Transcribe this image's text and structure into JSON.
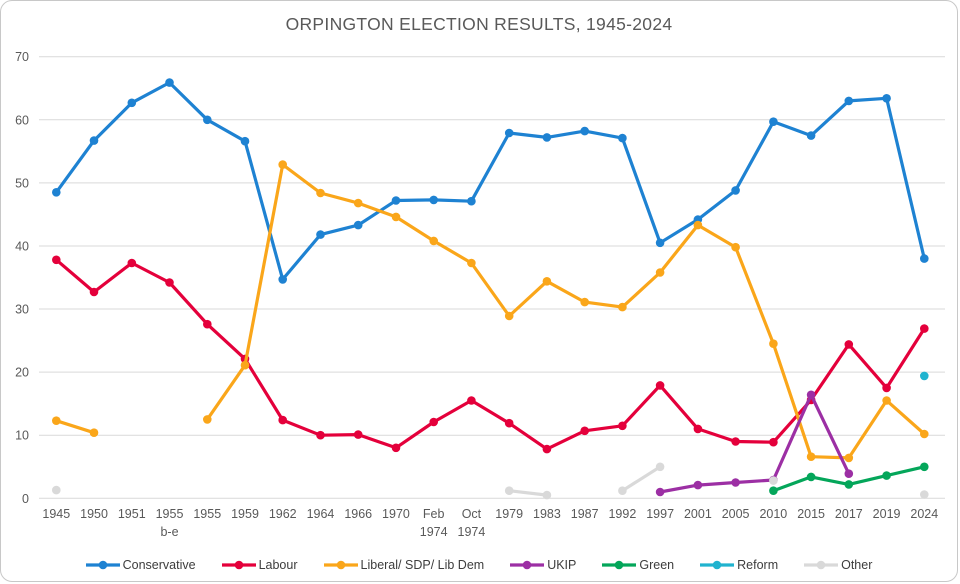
{
  "chart_data": {
    "type": "line",
    "title": "ORPINGTON ELECTION RESULTS, 1945-2024",
    "xlabel": "",
    "ylabel": "",
    "ylim": [
      0,
      70
    ],
    "yticks": [
      0,
      10,
      20,
      30,
      40,
      50,
      60,
      70
    ],
    "grid": true,
    "legend_position": "bottom",
    "marker": "circle",
    "categories": [
      "1945",
      "1950",
      "1951",
      "1955\nb-e",
      "1955",
      "1959",
      "1962",
      "1964",
      "1966",
      "1970",
      "Feb\n1974",
      "Oct\n1974",
      "1979",
      "1983",
      "1987",
      "1992",
      "1997",
      "2001",
      "2005",
      "2010",
      "2015",
      "2017",
      "2019",
      "2024"
    ],
    "series": [
      {
        "name": "Conservative",
        "color": "#1e82d2",
        "values": [
          48.5,
          56.7,
          62.7,
          65.9,
          60.0,
          56.6,
          34.7,
          41.8,
          43.3,
          47.2,
          47.3,
          47.1,
          57.9,
          57.2,
          58.2,
          57.1,
          40.5,
          44.2,
          48.8,
          59.7,
          57.5,
          63.0,
          63.4,
          38.0
        ]
      },
      {
        "name": "Labour",
        "color": "#e4003b",
        "values": [
          37.8,
          32.7,
          37.3,
          34.2,
          27.6,
          22.1,
          12.4,
          10.0,
          10.1,
          8.0,
          12.1,
          15.5,
          11.9,
          7.8,
          10.7,
          11.5,
          17.9,
          11.0,
          9.0,
          8.9,
          15.6,
          24.4,
          17.5,
          26.9
        ]
      },
      {
        "name": "Liberal/ SDP/ Lib Dem",
        "color": "#faa61a",
        "values": [
          12.3,
          10.4,
          null,
          null,
          12.5,
          21.1,
          52.9,
          48.4,
          46.8,
          44.6,
          40.8,
          37.3,
          28.9,
          34.4,
          31.1,
          30.3,
          35.8,
          43.3,
          39.8,
          24.5,
          6.6,
          6.4,
          15.5,
          10.2
        ]
      },
      {
        "name": "UKIP",
        "color": "#9c2fa4",
        "values": [
          null,
          null,
          null,
          null,
          null,
          null,
          null,
          null,
          null,
          null,
          null,
          null,
          null,
          null,
          null,
          null,
          1.0,
          2.1,
          2.5,
          2.9,
          16.4,
          3.9,
          null,
          null
        ]
      },
      {
        "name": "Green",
        "color": "#04a65a",
        "values": [
          null,
          null,
          null,
          null,
          null,
          null,
          null,
          null,
          null,
          null,
          null,
          null,
          null,
          null,
          null,
          null,
          null,
          null,
          null,
          1.2,
          3.4,
          2.2,
          3.6,
          5.0
        ]
      },
      {
        "name": "Reform",
        "color": "#20b3cf",
        "values": [
          null,
          null,
          null,
          null,
          null,
          null,
          null,
          null,
          null,
          null,
          null,
          null,
          null,
          null,
          null,
          null,
          null,
          null,
          null,
          null,
          null,
          null,
          null,
          19.4
        ]
      },
      {
        "name": "Other",
        "color": "#d9d9d9",
        "values": [
          1.3,
          null,
          null,
          null,
          null,
          null,
          null,
          null,
          null,
          null,
          null,
          null,
          1.2,
          0.5,
          null,
          1.2,
          5.0,
          null,
          null,
          2.8,
          null,
          null,
          null,
          0.6
        ]
      }
    ]
  }
}
